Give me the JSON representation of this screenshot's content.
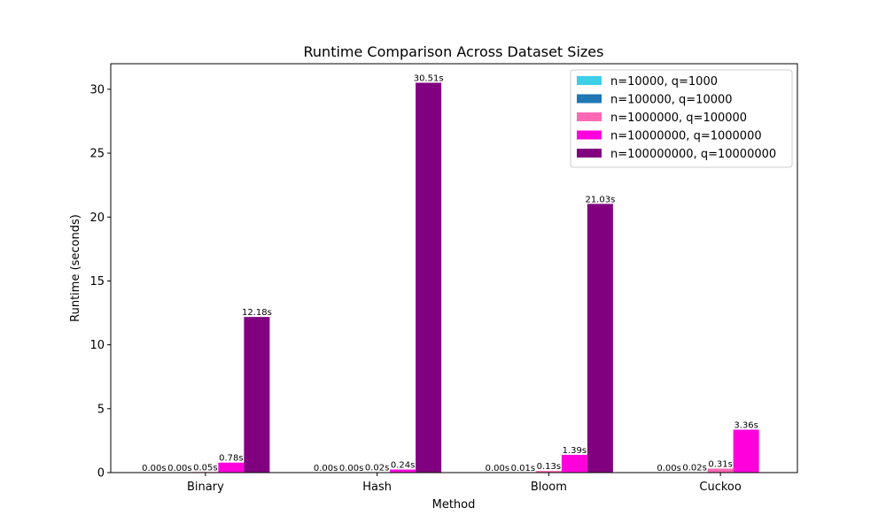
{
  "chart_data": {
    "type": "bar",
    "title": "Runtime Comparison Across Dataset Sizes",
    "xlabel": "Method",
    "ylabel": "Runtime (seconds)",
    "categories": [
      "Binary",
      "Hash",
      "Bloom",
      "Cuckoo"
    ],
    "ylim": [
      0,
      32
    ],
    "yticks": [
      0,
      5,
      10,
      15,
      20,
      25,
      30
    ],
    "legend_position": "top-right",
    "grid": false,
    "series": [
      {
        "name": "n=10000, q=1000",
        "color": "#3dcfe6",
        "values": [
          0.0,
          0.0,
          0.0,
          0.0
        ],
        "labels": [
          "0.00s",
          "0.00s",
          "0.00s",
          "0.00s"
        ]
      },
      {
        "name": "n=100000, q=10000",
        "color": "#1f77b4",
        "values": [
          0.0,
          0.0,
          0.01,
          0.02
        ],
        "labels": [
          "0.00s",
          "0.00s",
          "0.01s",
          "0.02s"
        ]
      },
      {
        "name": "n=1000000, q=100000",
        "color": "#ff69b4",
        "values": [
          0.05,
          0.02,
          0.13,
          0.31
        ],
        "labels": [
          "0.05s",
          "0.02s",
          "0.13s",
          "0.31s"
        ]
      },
      {
        "name": "n=10000000, q=1000000",
        "color": "#ff00dd",
        "values": [
          0.78,
          0.24,
          1.39,
          3.36
        ],
        "labels": [
          "0.78s",
          "0.24s",
          "1.39s",
          "3.36s"
        ]
      },
      {
        "name": "n=100000000, q=10000000",
        "color": "#800080",
        "values": [
          12.18,
          30.51,
          21.03,
          null
        ],
        "labels": [
          "12.18s",
          "30.51s",
          "21.03s",
          null
        ]
      }
    ]
  }
}
